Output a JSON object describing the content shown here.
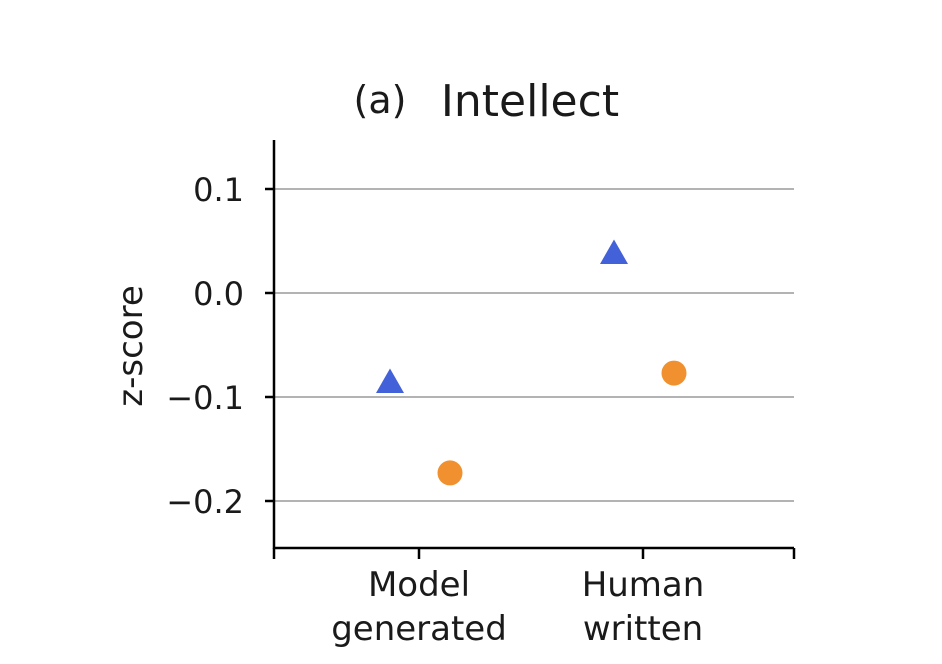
{
  "chart_data": {
    "type": "scatter",
    "title_prefix": "(a)",
    "title": "Intellect",
    "xlabel": "",
    "ylabel": "z-score",
    "categories": [
      [
        "Model",
        "generated"
      ],
      [
        "Human",
        "written"
      ]
    ],
    "ylim": [
      -0.25,
      0.15
    ],
    "yticks": [
      0.1,
      0.0,
      -0.1,
      -0.2
    ],
    "ytick_labels": [
      "0.1",
      "0.0",
      "−0.1",
      "−0.2"
    ],
    "grid": "horizontal",
    "series": [
      {
        "marker": "triangle",
        "color": "#4361d8",
        "values": [
          -0.086,
          0.038
        ]
      },
      {
        "marker": "circle",
        "color": "#f0902e",
        "values": [
          -0.173,
          -0.077
        ]
      }
    ]
  }
}
